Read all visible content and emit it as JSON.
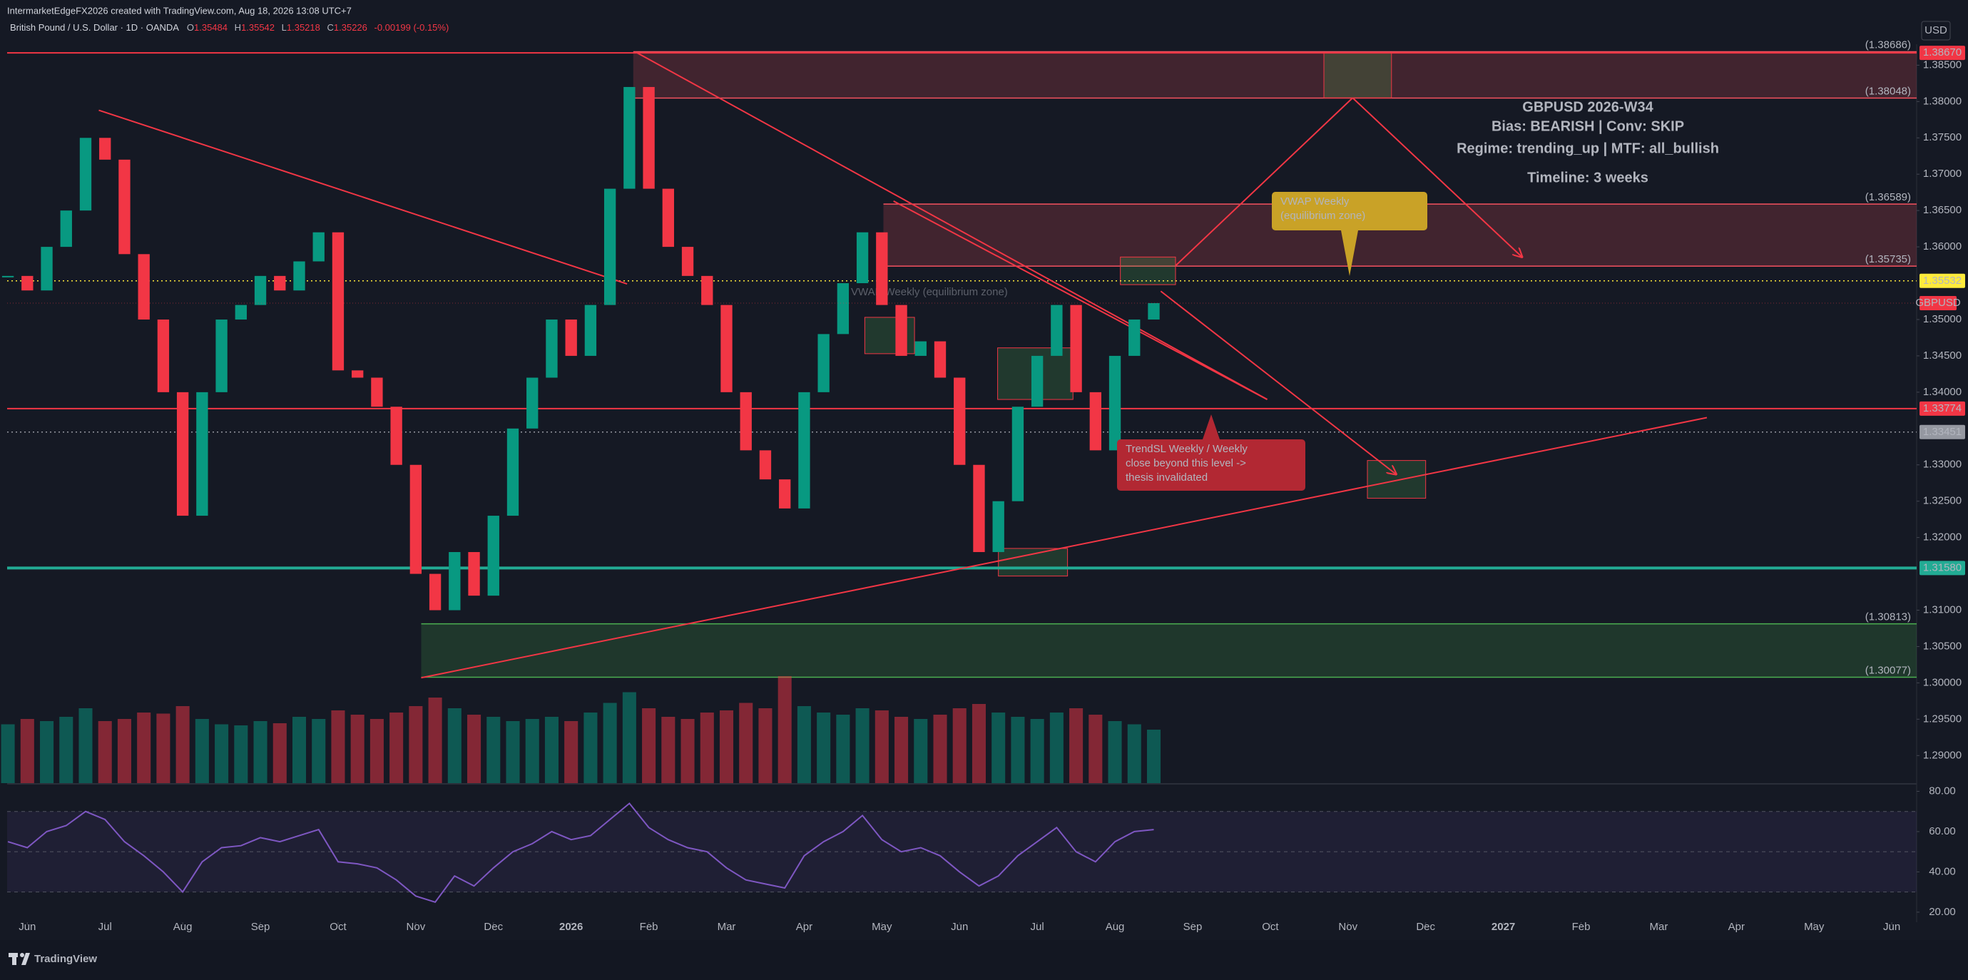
{
  "chart_data": {
    "type": "candlestick",
    "credit": "IntermarketEdgeFX2026 created with TradingView.com, Aug 18, 2026 13:08 UTC+7",
    "symbol_title": "British Pound / U.S. Dollar · 1D · OANDA",
    "ohlc_header": [
      {
        "label": "O",
        "value": "1.35484"
      },
      {
        "label": "H",
        "value": "1.35542"
      },
      {
        "label": "L",
        "value": "1.35218"
      },
      {
        "label": "C",
        "value": "1.35226"
      },
      {
        "label": "",
        "value": "-0.00199 (-0.15%)"
      }
    ],
    "currency": "USD",
    "brand": "TradingView",
    "up_color": "#089981",
    "down_color": "#f23645",
    "x": [
      -0.25,
      0,
      0.25,
      0.5,
      0.75,
      1,
      1.25,
      1.5,
      1.75,
      2,
      2.25,
      2.5,
      2.75,
      3,
      3.25,
      3.5,
      3.75,
      4,
      4.25,
      4.5,
      4.75,
      5,
      5.25,
      5.5,
      5.75,
      6,
      6.25,
      6.5,
      6.75,
      7,
      7.25,
      7.5,
      7.75,
      8,
      8.25,
      8.5,
      8.75,
      9,
      9.25,
      9.5,
      9.75,
      10,
      10.25,
      10.5,
      10.75,
      11,
      11.25,
      11.5,
      11.75,
      12,
      12.25,
      12.5,
      12.75,
      13,
      13.25,
      13.5,
      13.75,
      14,
      14.25,
      14.5
    ],
    "series": [
      {
        "name": "GBPUSD",
        "color": "#f23645",
        "values": [
          1.356,
          1.354,
          1.36,
          1.365,
          1.375,
          1.372,
          1.359,
          1.35,
          1.34,
          1.323,
          1.34,
          1.35,
          1.352,
          1.356,
          1.354,
          1.358,
          1.362,
          1.343,
          1.342,
          1.338,
          1.33,
          1.315,
          1.31,
          1.318,
          1.312,
          1.323,
          1.335,
          1.342,
          1.35,
          1.345,
          1.352,
          1.368,
          1.382,
          1.368,
          1.36,
          1.356,
          1.352,
          1.34,
          1.332,
          1.328,
          1.324,
          1.34,
          1.348,
          1.355,
          1.362,
          1.352,
          1.345,
          1.347,
          1.342,
          1.33,
          1.318,
          1.325,
          1.338,
          1.345,
          1.352,
          1.34,
          1.332,
          1.345,
          1.35,
          1.35226
        ]
      }
    ],
    "volume": [
      55,
      60,
      58,
      62,
      70,
      58,
      60,
      66,
      65,
      72,
      60,
      55,
      54,
      58,
      56,
      62,
      60,
      68,
      64,
      60,
      66,
      72,
      80,
      70,
      64,
      62,
      58,
      60,
      62,
      58,
      66,
      75,
      85,
      70,
      62,
      60,
      66,
      68,
      75,
      70,
      100,
      72,
      66,
      64,
      70,
      68,
      62,
      60,
      64,
      70,
      74,
      66,
      62,
      60,
      66,
      70,
      64,
      58,
      55,
      50
    ],
    "xlim": [
      -0.26,
      24.32
    ],
    "xticks": [
      {
        "value": 0,
        "label": "Jun"
      },
      {
        "value": 1,
        "label": "Jul"
      },
      {
        "value": 2,
        "label": "Aug"
      },
      {
        "value": 3,
        "label": "Sep"
      },
      {
        "value": 4,
        "label": "Oct"
      },
      {
        "value": 5,
        "label": "Nov"
      },
      {
        "value": 6,
        "label": "Dec"
      },
      {
        "value": 7,
        "label": "2026"
      },
      {
        "value": 8,
        "label": "Feb"
      },
      {
        "value": 9,
        "label": "Mar"
      },
      {
        "value": 10,
        "label": "Apr"
      },
      {
        "value": 11,
        "label": "May"
      },
      {
        "value": 12,
        "label": "Jun"
      },
      {
        "value": 13,
        "label": "Jul"
      },
      {
        "value": 14,
        "label": "Aug"
      },
      {
        "value": 15,
        "label": "Sep"
      },
      {
        "value": 16,
        "label": "Oct"
      },
      {
        "value": 17,
        "label": "Nov"
      },
      {
        "value": 18,
        "label": "Dec"
      },
      {
        "value": 19,
        "label": "2027"
      },
      {
        "value": 20,
        "label": "Feb"
      },
      {
        "value": 21,
        "label": "Mar"
      },
      {
        "value": 22,
        "label": "Apr"
      },
      {
        "value": 23,
        "label": "May"
      },
      {
        "value": 24,
        "label": "Jun"
      }
    ],
    "ylim": [
      1.2862,
      1.3871
    ],
    "yticks": [
      {
        "value": 1.385,
        "label": "1.38500"
      },
      {
        "value": 1.38,
        "label": "1.38000"
      },
      {
        "value": 1.375,
        "label": "1.37500"
      },
      {
        "value": 1.37,
        "label": "1.37000"
      },
      {
        "value": 1.365,
        "label": "1.36500"
      },
      {
        "value": 1.36,
        "label": "1.36000"
      },
      {
        "value": 1.35,
        "label": "1.35000"
      },
      {
        "value": 1.345,
        "label": "1.34500"
      },
      {
        "value": 1.34,
        "label": "1.34000"
      },
      {
        "value": 1.33,
        "label": "1.33000"
      },
      {
        "value": 1.325,
        "label": "1.32500"
      },
      {
        "value": 1.32,
        "label": "1.32000"
      },
      {
        "value": 1.31,
        "label": "1.31000"
      },
      {
        "value": 1.305,
        "label": "1.30500"
      },
      {
        "value": 1.3,
        "label": "1.30000"
      },
      {
        "value": 1.295,
        "label": "1.29500"
      },
      {
        "value": 1.29,
        "label": "1.29000"
      }
    ],
    "grid": false,
    "price_lines": [
      {
        "value": 1.3867,
        "label": "1.38670",
        "color": "#f23645",
        "text_color": "#ffffff",
        "style": "solid",
        "width": 2
      },
      {
        "value": 1.35532,
        "label": "1.35532",
        "color": "#ffeb3b",
        "text_color": "#131722",
        "style": "dotted",
        "width": 1.5
      },
      {
        "value": 1.33774,
        "label": "1.33774",
        "color": "#f23645",
        "text_color": "#ffffff",
        "style": "solid",
        "width": 2
      },
      {
        "value": 1.33451,
        "label": "1.33451",
        "color": "#9598a1",
        "text_color": "#ffffff",
        "style": "dotted",
        "width": 1.5
      },
      {
        "value": 1.3158,
        "label": "1.31580",
        "color": "#22ab94",
        "text_color": "#ffffff",
        "style": "solid",
        "width": 4
      }
    ],
    "zones": [
      {
        "x0": 7.8,
        "top": {
          "value": 1.38686,
          "label": "(1.38686)"
        },
        "bottom": {
          "value": 1.38048,
          "label": "(1.38048)"
        },
        "color": "#f7525f"
      },
      {
        "x0": 11.02,
        "top": {
          "value": 1.36589,
          "label": "(1.36589)"
        },
        "bottom": {
          "value": 1.35735,
          "label": "(1.35735)"
        },
        "color": "#f7525f"
      },
      {
        "x0": 5.07,
        "top": {
          "value": 1.30813,
          "label": "(1.30813)"
        },
        "bottom": {
          "value": 1.30077,
          "label": "(1.30077)"
        },
        "color": "#4caf50"
      }
    ],
    "boxes": [
      {
        "x0": 16.69,
        "x1": 17.56,
        "top": 1.3867,
        "bottom": 1.3805
      },
      {
        "x0": 14.07,
        "x1": 14.78,
        "top": 1.3586,
        "bottom": 1.3548
      },
      {
        "x0": 12.49,
        "x1": 13.46,
        "top": 1.3461,
        "bottom": 1.339
      },
      {
        "x0": 12.5,
        "x1": 13.39,
        "top": 1.3185,
        "bottom": 1.3147
      },
      {
        "x0": 17.25,
        "x1": 18.0,
        "top": 1.3306,
        "bottom": 1.3254
      },
      {
        "x0": 10.78,
        "x1": 11.42,
        "top": 1.3503,
        "bottom": 1.3453
      }
    ],
    "trendlines": [
      {
        "x0": 0.92,
        "y0": 1.3788,
        "x1": 7.72,
        "y1": 1.3549,
        "arrow": false
      },
      {
        "x0": 7.85,
        "y0": 1.3867,
        "x1": 15.96,
        "y1": 1.339,
        "arrow": false
      },
      {
        "x0": 11.15,
        "y0": 1.3663,
        "x1": 15.96,
        "y1": 1.339,
        "arrow": false
      },
      {
        "x0": 5.07,
        "y0": 1.3007,
        "x1": 21.62,
        "y1": 1.3365,
        "arrow": false
      },
      {
        "x0": 14.78,
        "y0": 1.3574,
        "x1": 17.06,
        "y1": 1.3805,
        "arrow": false
      },
      {
        "x0": 17.06,
        "y0": 1.3805,
        "x1": 19.24,
        "y1": 1.3586,
        "arrow": true
      },
      {
        "x0": 14.59,
        "y0": 1.3539,
        "x1": 17.62,
        "y1": 1.3287,
        "arrow": true
      }
    ],
    "trend_color": "#f23645",
    "watermark": "VWAP Weekly (equilibrium zone)",
    "info": [
      {
        "text": "GBPUSD 2026-W34",
        "color": "#d1d4dc"
      },
      {
        "text": "Bias: BEARISH | Conv: SKIP",
        "color": "#ff9800"
      },
      {
        "text": "Regime: trending_up | MTF: all_bullish",
        "color": "#d1d4dc"
      },
      {
        "text": "Timeline: 3 weeks",
        "color": "#d1d4dc"
      }
    ],
    "callouts": [
      {
        "lines": [
          "VWAP Weekly",
          "(equilibrium zone)"
        ],
        "color": "#c9a227"
      },
      {
        "lines": [
          "TrendSL Weekly / Weekly",
          "close beyond this level ->",
          "thesis invalidated"
        ],
        "color": "#b22833"
      }
    ],
    "rsi": {
      "color": "#7e57c2",
      "values": [
        55,
        52,
        60,
        63,
        70,
        66,
        55,
        48,
        40,
        30,
        45,
        52,
        53,
        57,
        55,
        58,
        61,
        45,
        44,
        42,
        36,
        28,
        25,
        38,
        33,
        42,
        50,
        54,
        60,
        56,
        58,
        66,
        74,
        62,
        56,
        52,
        50,
        42,
        36,
        34,
        32,
        48,
        55,
        60,
        68,
        56,
        50,
        52,
        48,
        40,
        33,
        38,
        48,
        55,
        62,
        50,
        45,
        55,
        60,
        61
      ],
      "ylim": [
        15,
        83
      ],
      "yticks": [
        {
          "value": 80,
          "label": "80.00"
        },
        {
          "value": 60,
          "label": "60.00"
        },
        {
          "value": 40,
          "label": "40.00"
        },
        {
          "value": 20,
          "label": "20.00"
        }
      ],
      "bands": [
        70,
        50,
        30
      ]
    }
  }
}
